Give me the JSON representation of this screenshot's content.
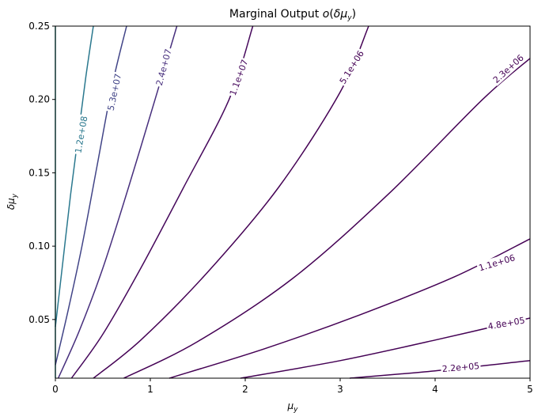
{
  "chart_data": {
    "type": "contour",
    "title": "Marginal Output o(δμ_y)",
    "xlabel": "μ_y",
    "ylabel": "δμ_y",
    "xlim": [
      0,
      5
    ],
    "ylim": [
      0.01,
      0.25
    ],
    "xticks": [
      0,
      1,
      2,
      3,
      4,
      5
    ],
    "xtick_labels": [
      "0",
      "1",
      "2",
      "3",
      "4",
      "5"
    ],
    "yticks": [
      0.05,
      0.1,
      0.15,
      0.2,
      0.25
    ],
    "ytick_labels": [
      "0.05",
      "0.10",
      "0.15",
      "0.20",
      "0.25"
    ],
    "grid": false,
    "colormap": "viridis",
    "contours": [
      {
        "label": "",
        "color": "#21918c",
        "points": [
          [
            0.0,
            0.25
          ],
          [
            0.0,
            0.01
          ]
        ]
      },
      {
        "label": "1.2e+08",
        "color": "#2a788e",
        "label_at": [
          0.27,
          0.176
        ],
        "label_angle": -80,
        "points": [
          [
            0.0,
            0.045
          ],
          [
            0.08,
            0.09
          ],
          [
            0.16,
            0.135
          ],
          [
            0.24,
            0.175
          ],
          [
            0.32,
            0.215
          ],
          [
            0.4,
            0.25
          ]
        ]
      },
      {
        "label": "5.3e+07",
        "color": "#414487",
        "label_at": [
          0.62,
          0.205
        ],
        "label_angle": -78,
        "points": [
          [
            0.0,
            0.019
          ],
          [
            0.13,
            0.055
          ],
          [
            0.28,
            0.1
          ],
          [
            0.44,
            0.155
          ],
          [
            0.6,
            0.21
          ],
          [
            0.75,
            0.25
          ]
        ]
      },
      {
        "label": "2.4e+07",
        "color": "#472f7d",
        "label_at": [
          1.14,
          0.222
        ],
        "label_angle": -75,
        "points": [
          [
            0.03,
            0.01
          ],
          [
            0.25,
            0.042
          ],
          [
            0.5,
            0.085
          ],
          [
            0.77,
            0.14
          ],
          [
            1.05,
            0.2
          ],
          [
            1.28,
            0.25
          ]
        ]
      },
      {
        "label": "1.1e+07",
        "color": "#46085c",
        "label_at": [
          1.93,
          0.215
        ],
        "label_angle": -70,
        "points": [
          [
            0.17,
            0.01
          ],
          [
            0.5,
            0.04
          ],
          [
            0.9,
            0.085
          ],
          [
            1.35,
            0.14
          ],
          [
            1.83,
            0.2
          ],
          [
            2.08,
            0.25
          ]
        ]
      },
      {
        "label": "5.1e+06",
        "color": "#440154",
        "label_at": [
          3.12,
          0.222
        ],
        "label_angle": -58,
        "points": [
          [
            0.4,
            0.01
          ],
          [
            0.9,
            0.036
          ],
          [
            1.6,
            0.082
          ],
          [
            2.35,
            0.14
          ],
          [
            3.0,
            0.205
          ],
          [
            3.3,
            0.25
          ]
        ]
      },
      {
        "label": "2.3e+06",
        "color": "#440154",
        "label_at": [
          4.77,
          0.221
        ],
        "label_angle": -42,
        "points": [
          [
            0.72,
            0.01
          ],
          [
            1.5,
            0.035
          ],
          [
            2.5,
            0.078
          ],
          [
            3.5,
            0.135
          ],
          [
            4.5,
            0.2
          ],
          [
            5.0,
            0.228
          ]
        ]
      },
      {
        "label": "1.1e+06",
        "color": "#440154",
        "label_at": [
          4.65,
          0.0888
        ],
        "label_angle": -17,
        "points": [
          [
            1.2,
            0.01
          ],
          [
            2.2,
            0.03
          ],
          [
            3.2,
            0.053
          ],
          [
            4.2,
            0.079
          ],
          [
            5.0,
            0.105
          ]
        ]
      },
      {
        "label": "4.8e+05",
        "color": "#440154",
        "label_at": [
          4.75,
          0.0475
        ],
        "label_angle": -10,
        "points": [
          [
            1.95,
            0.01
          ],
          [
            3.0,
            0.022
          ],
          [
            4.0,
            0.036
          ],
          [
            5.0,
            0.051
          ]
        ]
      },
      {
        "label": "2.2e+05",
        "color": "#440154",
        "label_at": [
          4.27,
          0.0175
        ],
        "label_angle": -5,
        "points": [
          [
            3.1,
            0.01
          ],
          [
            4.0,
            0.015
          ],
          [
            5.0,
            0.022
          ]
        ]
      }
    ]
  }
}
